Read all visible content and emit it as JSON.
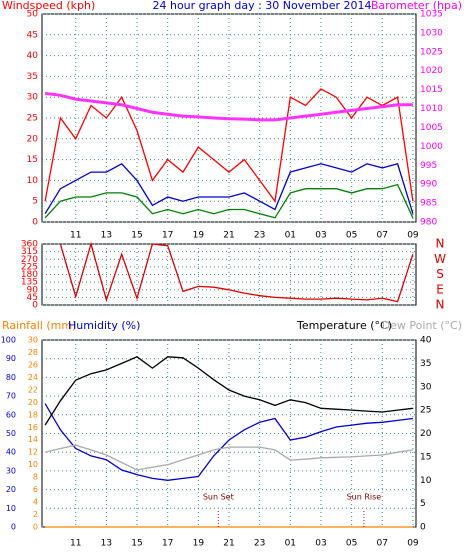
{
  "chart_data": [
    {
      "type": "line",
      "title": "24 hour graph day : 30 November 2014",
      "ylabel": "Windspeed (kph)",
      "y2label": "Barometer (hpa)",
      "x": [
        9,
        10,
        11,
        12,
        13,
        14,
        15,
        16,
        17,
        18,
        19,
        20,
        21,
        22,
        23,
        24,
        25,
        26,
        27,
        28,
        29,
        30,
        31,
        32,
        33
      ],
      "xlim": [
        8.8,
        33.2
      ],
      "xticks": [
        11,
        13,
        15,
        17,
        19,
        21,
        23,
        {
          "value": 25,
          "label": "01"
        },
        {
          "value": 27,
          "label": "03"
        },
        {
          "value": 29,
          "label": "05"
        },
        {
          "value": 31,
          "label": "07"
        },
        {
          "value": 33,
          "label": "09"
        }
      ],
      "ylim": [
        0,
        50
      ],
      "yticks": [
        0,
        5,
        10,
        15,
        20,
        25,
        30,
        35,
        40,
        45,
        50
      ],
      "y2lim": [
        980,
        1035
      ],
      "y2ticks": [
        980,
        985,
        990,
        995,
        1000,
        1005,
        1010,
        1015,
        1020,
        1025,
        1030,
        1035
      ],
      "grid": true,
      "series": [
        {
          "color": "#ff0000",
          "values": [
            5,
            25,
            20,
            28,
            25,
            30,
            22,
            10,
            15,
            12,
            18,
            15,
            12,
            15,
            10,
            5,
            30,
            28,
            32,
            30,
            25,
            30,
            28,
            30,
            5
          ]
        },
        {
          "color": "#0000cc",
          "values": [
            2,
            8,
            10,
            12,
            12,
            14,
            10,
            4,
            6,
            5,
            6,
            6,
            6,
            7,
            5,
            3,
            12,
            13,
            14,
            13,
            12,
            14,
            13,
            14,
            2
          ]
        },
        {
          "color": "#008000",
          "values": [
            1,
            5,
            6,
            6,
            7,
            7,
            6,
            2,
            3,
            2,
            3,
            2,
            3,
            3,
            2,
            1,
            7,
            8,
            8,
            8,
            7,
            8,
            8,
            9,
            1
          ]
        },
        {
          "color": "#ff33ff",
          "axis": "y2",
          "values": [
            1014,
            1013.5,
            1012.5,
            1012,
            1011.5,
            1011,
            1010,
            1009,
            1008.5,
            1008,
            1007.8,
            1007.5,
            1007.3,
            1007.2,
            1007,
            1007,
            1007.5,
            1008,
            1008.5,
            1009,
            1009.5,
            1010,
            1010.5,
            1011,
            1011
          ]
        }
      ]
    },
    {
      "type": "line",
      "x": [
        9,
        10,
        11,
        12,
        13,
        14,
        15,
        16,
        17,
        18,
        19,
        20,
        21,
        22,
        23,
        24,
        25,
        26,
        27,
        28,
        29,
        30,
        31,
        32,
        33
      ],
      "xlim": [
        8.8,
        33.2
      ],
      "xticks": [
        11,
        13,
        15,
        17,
        19,
        21,
        23,
        {
          "value": 25,
          "label": "01"
        },
        {
          "value": 27,
          "label": "03"
        },
        {
          "value": 29,
          "label": "05"
        },
        {
          "value": 31,
          "label": "07"
        },
        {
          "value": 33,
          "label": "09"
        }
      ],
      "ylim": [
        0,
        360
      ],
      "yticks": [
        0,
        45,
        90,
        135,
        180,
        225,
        270,
        315,
        360
      ],
      "y2lim": [
        0,
        360
      ],
      "y2ticks": [
        {
          "value": 360,
          "label": "N"
        },
        {
          "value": 270,
          "label": "W"
        },
        {
          "value": 180,
          "label": "S"
        },
        {
          "value": 90,
          "label": "E"
        },
        {
          "value": 0,
          "label": "N"
        }
      ],
      "grid": true,
      "series": [
        {
          "color": "#dd0000",
          "values": [
            null,
            360,
            50,
            360,
            30,
            300,
            40,
            360,
            350,
            80,
            110,
            105,
            90,
            70,
            55,
            45,
            40,
            35,
            35,
            40,
            35,
            30,
            40,
            20,
            300
          ]
        }
      ]
    },
    {
      "type": "line",
      "x": [
        9,
        10,
        11,
        12,
        13,
        14,
        15,
        16,
        17,
        18,
        19,
        20,
        21,
        22,
        23,
        24,
        25,
        26,
        27,
        28,
        29,
        30,
        31,
        32,
        33
      ],
      "xlim": [
        8.8,
        33.2
      ],
      "xticks": [
        11,
        13,
        15,
        17,
        19,
        21,
        23,
        {
          "value": 25,
          "label": "01"
        },
        {
          "value": 27,
          "label": "03"
        },
        {
          "value": 29,
          "label": "05"
        },
        {
          "value": 31,
          "label": "07"
        },
        {
          "value": 33,
          "label": "09"
        }
      ],
      "ylim": [
        0,
        100
      ],
      "yticks": [
        0,
        10,
        20,
        30,
        40,
        50,
        60,
        70,
        80,
        90,
        100
      ],
      "y2lim": [
        0,
        40
      ],
      "y2ticks": [
        0,
        5,
        10,
        15,
        20,
        25,
        30,
        35,
        40
      ],
      "y3lim": [
        0,
        30
      ],
      "y3ticks": [
        0,
        2,
        4,
        6,
        8,
        10,
        12,
        14,
        16,
        18,
        20,
        22,
        24,
        26,
        28,
        30
      ],
      "grid": true,
      "series": [
        {
          "name": "Rainfall (mm)",
          "color": "#ff8000",
          "axis": "y3",
          "values": [
            0,
            0,
            0,
            0,
            0,
            0,
            0,
            0,
            0,
            0,
            0,
            0,
            0,
            0,
            0,
            0,
            0,
            0,
            0,
            0,
            0,
            0,
            0,
            0,
            0
          ]
        },
        {
          "name": "Humidity (%)",
          "color": "#0000cc",
          "values": [
            66,
            52,
            42,
            38,
            36,
            30.5,
            28,
            26,
            25,
            26,
            27,
            38,
            46.5,
            52,
            56,
            58,
            46.5,
            48,
            51,
            53.5,
            54.5,
            55.5,
            56,
            57,
            58
          ]
        },
        {
          "name": "Temperature (°C)",
          "color": "#000000",
          "axis": "y2",
          "values": [
            21.8,
            27,
            31.4,
            32.8,
            33.6,
            35,
            36.4,
            34,
            36.4,
            36.2,
            34,
            31.5,
            29.3,
            28,
            27.2,
            26,
            27.2,
            26.6,
            25.4,
            25.2,
            25,
            24.8,
            24.6,
            25,
            25.4
          ]
        },
        {
          "name": "Dew Point (°C)",
          "color": "#aaaaaa",
          "axis": "y2",
          "values": [
            16,
            16.8,
            17.5,
            16.5,
            15.4,
            13.8,
            12.2,
            12.8,
            13.3,
            14.4,
            15.4,
            16.5,
            17.1,
            17.1,
            17.1,
            16.5,
            14.3,
            14.5,
            14.8,
            14.9,
            15,
            15.2,
            15.4,
            16,
            16.5
          ]
        }
      ],
      "annotations": [
        {
          "text": "Sun Set",
          "x": 20.3
        },
        {
          "text": "Sun Rise",
          "x": 29.8
        }
      ]
    }
  ]
}
